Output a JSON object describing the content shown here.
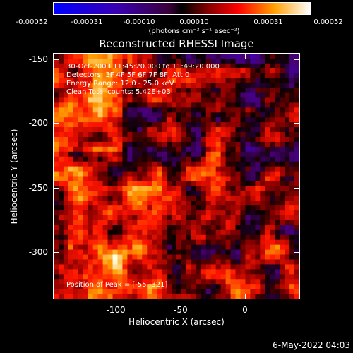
{
  "colorbar": {
    "ticks": [
      "-0.00052",
      "-0.00031",
      "-0.00010",
      "0.00010",
      "0.00031",
      "0.00052"
    ],
    "units": "(photons cm⁻² s⁻¹ asec⁻²)"
  },
  "plot": {
    "title": "Reconstructed RHESSI Image",
    "annotations": {
      "time_range": "30-Oct-2003 11:45:20.000 to 11:49:20.000",
      "detectors": "Detectors: 3F 4F 5F 6F 7F 8F, Att 0",
      "energy_range": "Energy Range: 12.0 - 25.0 keV",
      "clean_counts": "Clean     Total counts: 5.42E+03",
      "peak": "Position of Peak = [-55,-321]"
    },
    "x_axis": {
      "label": "Heliocentric X (arcsec)",
      "ticks": [
        "-100",
        "-50",
        "0"
      ]
    },
    "y_axis": {
      "label": "Heliocentric Y (arcsec)",
      "ticks": [
        "-150",
        "-200",
        "-250",
        "-300"
      ]
    }
  },
  "footer": {
    "timestamp": "6-May-2022 04:03"
  }
}
